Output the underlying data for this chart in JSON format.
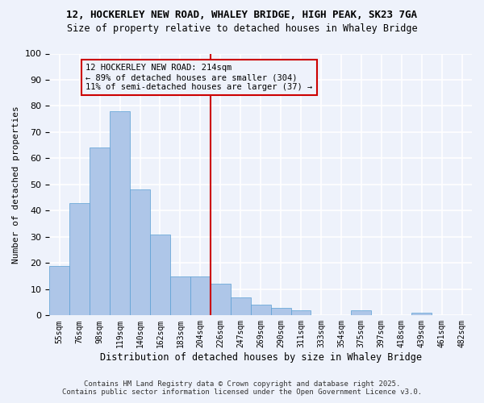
{
  "title1": "12, HOCKERLEY NEW ROAD, WHALEY BRIDGE, HIGH PEAK, SK23 7GA",
  "title2": "Size of property relative to detached houses in Whaley Bridge",
  "xlabel": "Distribution of detached houses by size in Whaley Bridge",
  "ylabel": "Number of detached properties",
  "bar_values": [
    19,
    43,
    64,
    78,
    48,
    31,
    15,
    15,
    12,
    7,
    4,
    3,
    2,
    0,
    0,
    2,
    0,
    0,
    1,
    0,
    0
  ],
  "categories": [
    "55sqm",
    "76sqm",
    "98sqm",
    "119sqm",
    "140sqm",
    "162sqm",
    "183sqm",
    "204sqm",
    "226sqm",
    "247sqm",
    "269sqm",
    "290sqm",
    "311sqm",
    "333sqm",
    "354sqm",
    "375sqm",
    "397sqm",
    "418sqm",
    "439sqm",
    "461sqm",
    "482sqm"
  ],
  "bar_color": "#aec6e8",
  "bar_edge_color": "#5a9fd4",
  "vline_x": 7.5,
  "vline_color": "#cc0000",
  "annotation_title": "12 HOCKERLEY NEW ROAD: 214sqm",
  "annotation_line1": "← 89% of detached houses are smaller (304)",
  "annotation_line2": "11% of semi-detached houses are larger (37) →",
  "annotation_box_color": "#cc0000",
  "ylim": [
    0,
    100
  ],
  "yticks": [
    0,
    10,
    20,
    30,
    40,
    50,
    60,
    70,
    80,
    90,
    100
  ],
  "background_color": "#eef2fb",
  "grid_color": "#ffffff",
  "footer1": "Contains HM Land Registry data © Crown copyright and database right 2025.",
  "footer2": "Contains public sector information licensed under the Open Government Licence v3.0."
}
